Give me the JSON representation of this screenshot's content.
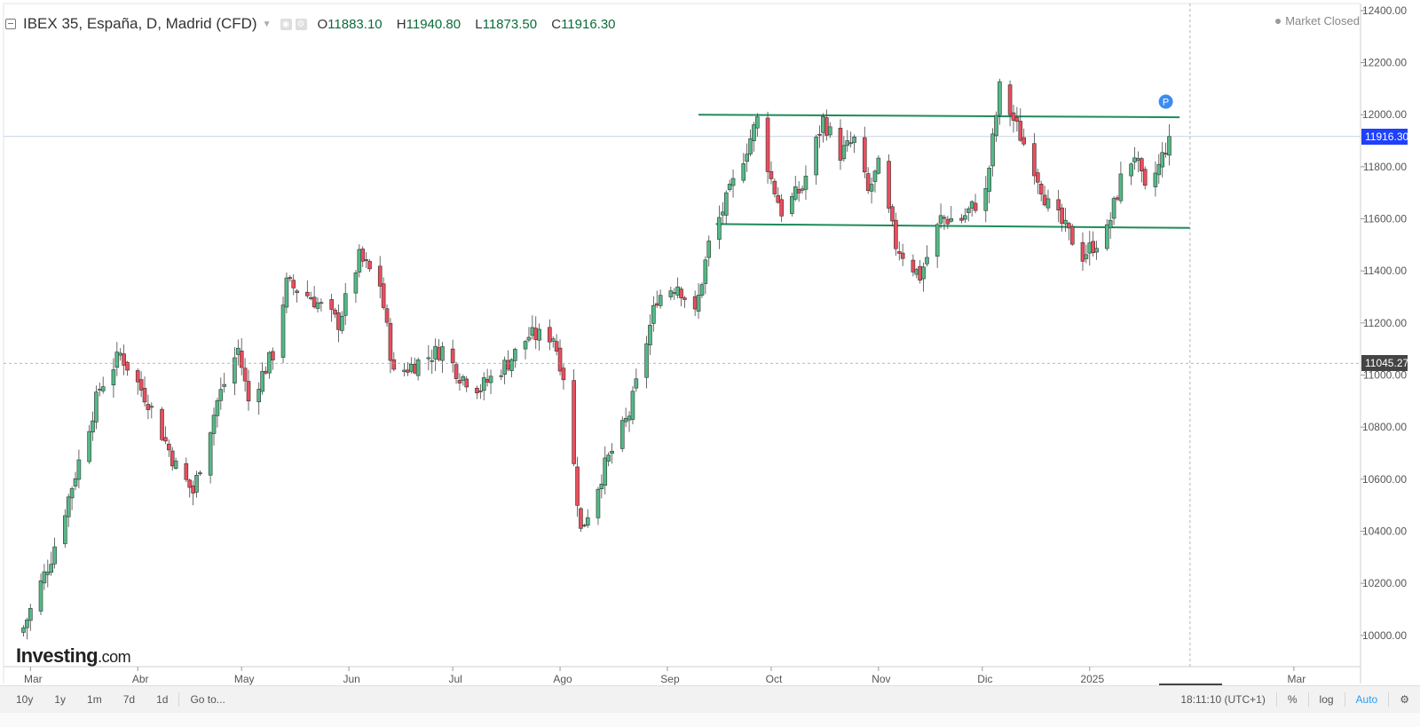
{
  "header": {
    "title": "IBEX 35, España, D, Madrid (CFD)",
    "ohlc": [
      {
        "label": "O",
        "value": "11883.10"
      },
      {
        "label": "H",
        "value": "11940.80"
      },
      {
        "label": "L",
        "value": "11873.50"
      },
      {
        "label": "C",
        "value": "11916.30"
      }
    ],
    "market_status": "Market Closed"
  },
  "logo": {
    "main": "Investing",
    "suffix": ".com"
  },
  "price_tags": {
    "last": "11916.30",
    "crosshair": "11045.27"
  },
  "crosshair_date": "2025-01-30",
  "pivot_marker": "P",
  "toolbar": {
    "ranges": [
      "10y",
      "1y",
      "1m",
      "7d",
      "1d"
    ],
    "goto": "Go to...",
    "time": "18:11:10 (UTC+1)",
    "percent": "%",
    "log": "log",
    "auto": "Auto"
  },
  "colors": {
    "up": "#53b987",
    "down": "#eb4d5c",
    "trendline": "#1e8c5a",
    "last_tag": "#1e40ff",
    "crosshair_tag": "#444444"
  },
  "chart_data": {
    "type": "candlestick",
    "title": "IBEX 35, España, D, Madrid (CFD)",
    "xlabel": "",
    "ylabel": "",
    "ylim": [
      9880,
      12420
    ],
    "y_ticks": [
      10000,
      10200,
      10400,
      10600,
      10800,
      11000,
      11200,
      11400,
      11600,
      11800,
      12000,
      12200,
      12400
    ],
    "x_ticks": [
      "Mar",
      "Abr",
      "May",
      "Jun",
      "Jul",
      "Ago",
      "Sep",
      "Oct",
      "Nov",
      "Dic",
      "2025",
      "Mar"
    ],
    "x_tick_dates": [
      "2024-03-01",
      "2024-04-01",
      "2024-05-01",
      "2024-06-01",
      "2024-07-01",
      "2024-08-01",
      "2024-09-01",
      "2024-10-01",
      "2024-11-01",
      "2024-12-01",
      "2025-01-01",
      "2025-03-01"
    ],
    "date_range": [
      "2024-02-28",
      "2025-01-24"
    ],
    "last_close": 11916.3,
    "resistance": {
      "from": [
        "2024-09-10",
        12000
      ],
      "to": [
        "2025-01-27",
        11990
      ]
    },
    "support": {
      "from": [
        "2024-09-15",
        11580
      ],
      "to": [
        "2025-01-30",
        11565
      ]
    },
    "anchors": [
      [
        "2024-02-28",
        10030
      ],
      [
        "2024-03-07",
        10300
      ],
      [
        "2024-03-14",
        10620
      ],
      [
        "2024-03-21",
        10950
      ],
      [
        "2024-03-27",
        11080
      ],
      [
        "2024-04-04",
        10900
      ],
      [
        "2024-04-12",
        10650
      ],
      [
        "2024-04-17",
        10550
      ],
      [
        "2024-04-24",
        10900
      ],
      [
        "2024-04-30",
        11100
      ],
      [
        "2024-05-03",
        10900
      ],
      [
        "2024-05-10",
        11080
      ],
      [
        "2024-05-14",
        11350
      ],
      [
        "2024-05-21",
        11300
      ],
      [
        "2024-05-29",
        11200
      ],
      [
        "2024-06-04",
        11450
      ],
      [
        "2024-06-10",
        11350
      ],
      [
        "2024-06-14",
        11000
      ],
      [
        "2024-06-21",
        11050
      ],
      [
        "2024-06-28",
        11100
      ],
      [
        "2024-07-03",
        11000
      ],
      [
        "2024-07-09",
        10950
      ],
      [
        "2024-07-17",
        11050
      ],
      [
        "2024-07-23",
        11150
      ],
      [
        "2024-07-30",
        11150
      ],
      [
        "2024-08-02",
        11000
      ],
      [
        "2024-08-05",
        10650
      ],
      [
        "2024-08-07",
        10400
      ],
      [
        "2024-08-14",
        10650
      ],
      [
        "2024-08-21",
        10850
      ],
      [
        "2024-08-29",
        11300
      ],
      [
        "2024-09-04",
        11350
      ],
      [
        "2024-09-09",
        11230
      ],
      [
        "2024-09-13",
        11500
      ],
      [
        "2024-09-19",
        11700
      ],
      [
        "2024-09-27",
        11980
      ],
      [
        "2024-10-01",
        11750
      ],
      [
        "2024-10-04",
        11630
      ],
      [
        "2024-10-10",
        11720
      ],
      [
        "2024-10-16",
        11980
      ],
      [
        "2024-10-21",
        11850
      ],
      [
        "2024-10-25",
        11900
      ],
      [
        "2024-10-29",
        11700
      ],
      [
        "2024-11-01",
        11800
      ],
      [
        "2024-11-06",
        11500
      ],
      [
        "2024-11-13",
        11380
      ],
      [
        "2024-11-19",
        11600
      ],
      [
        "2024-11-25",
        11600
      ],
      [
        "2024-12-02",
        11700
      ],
      [
        "2024-12-06",
        12100
      ],
      [
        "2024-12-11",
        11950
      ],
      [
        "2024-12-16",
        11800
      ],
      [
        "2024-12-20",
        11650
      ],
      [
        "2024-12-23",
        11600
      ],
      [
        "2024-12-30",
        11460
      ],
      [
        "2025-01-06",
        11550
      ],
      [
        "2025-01-10",
        11750
      ],
      [
        "2025-01-14",
        11850
      ],
      [
        "2025-01-17",
        11700
      ],
      [
        "2025-01-21",
        11800
      ],
      [
        "2025-01-24",
        11916
      ]
    ]
  }
}
